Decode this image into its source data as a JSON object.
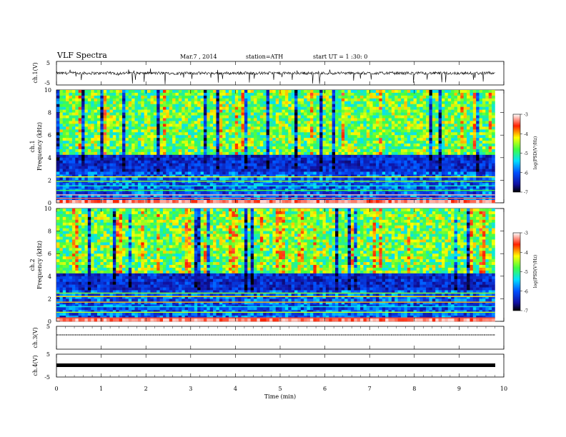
{
  "header": {
    "title": "VLF Spectra",
    "date": "Mar.7 , 2014",
    "station": "station=ATH",
    "start": "start UT = 1 :30: 0"
  },
  "chart_data": [
    {
      "type": "line",
      "panel": "ch1-waveform",
      "ylabel": "ch.1(V)",
      "ylim": [
        -5,
        5
      ],
      "yticks": [
        "5",
        "-5"
      ],
      "xlim": [
        0,
        10
      ],
      "note": "broadband waveform around 0 V with frequent spikes"
    },
    {
      "type": "heatmap",
      "panel": "ch1-spectrogram",
      "ylabel": [
        "ch.1",
        "Frequency (kHz)"
      ],
      "ylim": [
        0,
        10
      ],
      "yticks": [
        "0",
        "2",
        "4",
        "6",
        "8",
        "10"
      ],
      "xlim": [
        0,
        9.8
      ],
      "colorbar": {
        "label": "log(PSD(V²/Hz)",
        "range": [
          -7,
          -3
        ],
        "ticks": [
          "-3",
          "-4",
          "-5",
          "-6",
          "-7"
        ]
      }
    },
    {
      "type": "heatmap",
      "panel": "ch2-spectrogram",
      "ylabel": [
        "ch.2",
        "Frequency (kHz)"
      ],
      "ylim": [
        0,
        10
      ],
      "yticks": [
        "0",
        "2",
        "4",
        "6",
        "8",
        "10"
      ],
      "xlim": [
        0,
        9.8
      ],
      "colorbar": {
        "label": "log(PSD(V²/Hz)",
        "range": [
          -7,
          -3
        ],
        "ticks": [
          "-3",
          "-4",
          "-5",
          "-6",
          "-7"
        ]
      }
    },
    {
      "type": "line",
      "panel": "ch3-waveform",
      "ylabel": "ch.3(V)",
      "ylim": [
        -5,
        5
      ],
      "yticks": [
        "5"
      ],
      "value_level": 0
    },
    {
      "type": "line",
      "panel": "ch4-waveform",
      "ylabel": "ch.4(V)",
      "ylim": [
        -5,
        5
      ],
      "yticks": [
        "5",
        "-5"
      ],
      "value_level": 0
    }
  ],
  "xaxis": {
    "label": "Time (min)",
    "ticks": [
      "0",
      "1",
      "2",
      "3",
      "4",
      "5",
      "6",
      "7",
      "8",
      "9",
      "10"
    ]
  }
}
